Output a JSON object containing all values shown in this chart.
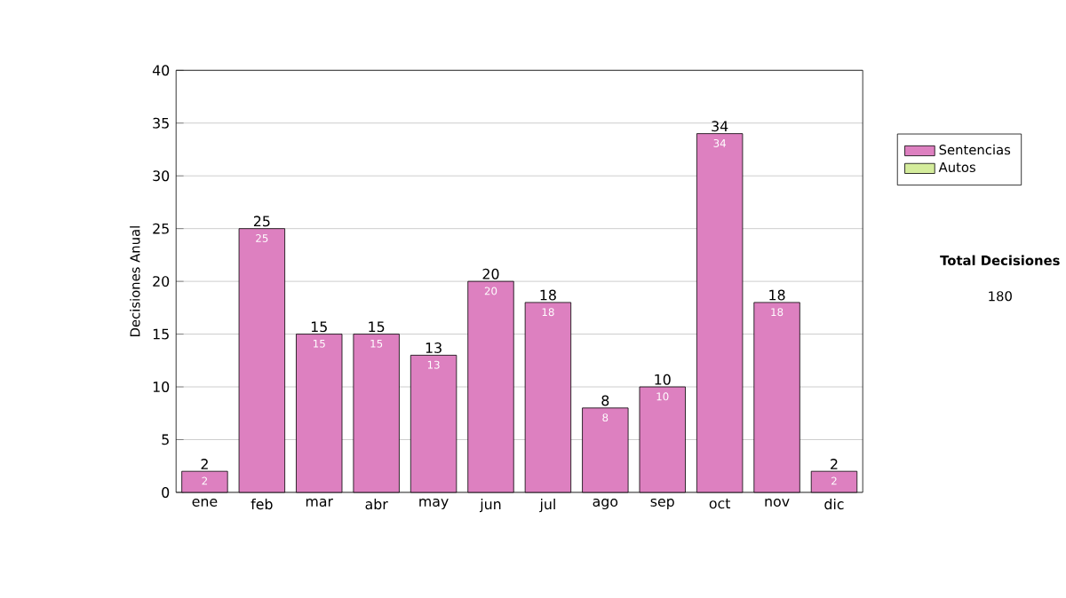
{
  "chart_data": {
    "type": "bar",
    "ylabel": "Decisiones Anual",
    "categories": [
      "ene",
      "feb",
      "mar",
      "abr",
      "may",
      "jun",
      "jul",
      "ago",
      "sep",
      "oct",
      "nov",
      "dic"
    ],
    "series": [
      {
        "name": "Sentencias",
        "color": "#dd80c0",
        "values": [
          2,
          25,
          15,
          15,
          13,
          20,
          18,
          8,
          10,
          34,
          18,
          2
        ]
      },
      {
        "name": "Autos",
        "color": "#d4ec9c",
        "values": [
          null,
          null,
          null,
          null,
          null,
          null,
          null,
          null,
          null,
          null,
          null,
          null
        ]
      }
    ],
    "stacked": true,
    "totals": [
      "2",
      "25",
      "15",
      "15",
      "13",
      "20",
      "18",
      "8",
      "10",
      "34",
      "18",
      "2"
    ],
    "data_labels": true,
    "ylim": [
      0,
      40
    ],
    "yticks": [
      0,
      5,
      10,
      15,
      20,
      25,
      30,
      35,
      40
    ],
    "grid": "y",
    "legend": "right",
    "annotations": [
      "**Total Decisiones**",
      "180"
    ]
  }
}
